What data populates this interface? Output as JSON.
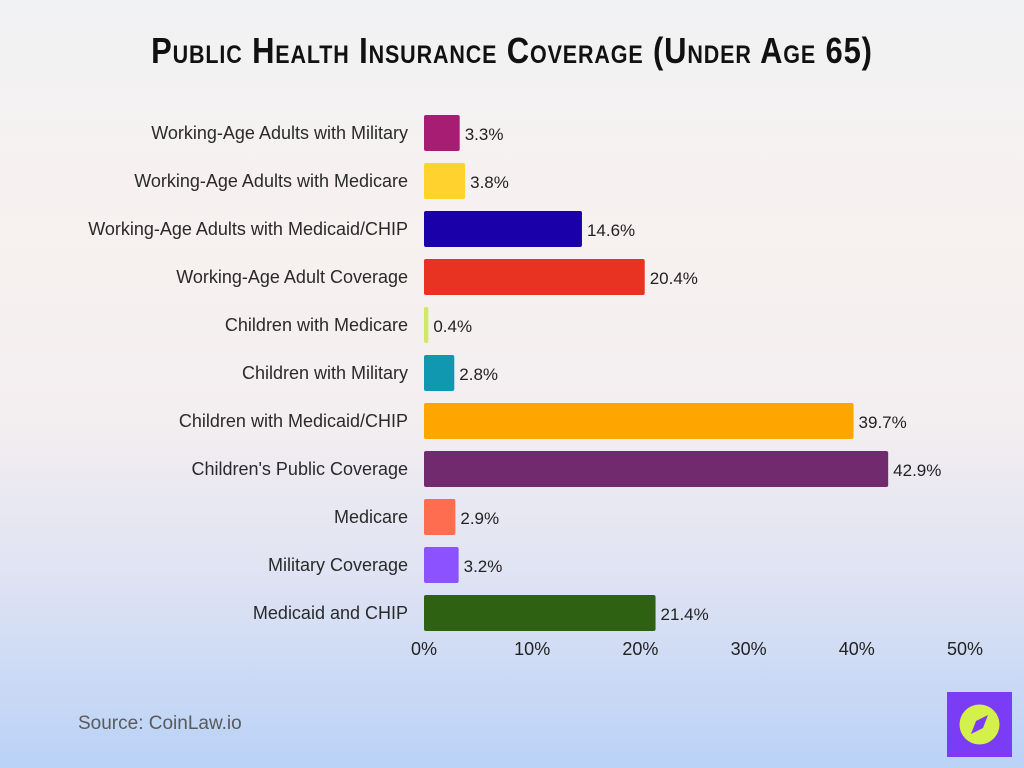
{
  "chart_data": {
    "type": "bar",
    "orientation": "horizontal",
    "title": "Public Health Insurance Coverage (Under Age 65)",
    "categories": [
      "Working-Age Adults with Military",
      "Working-Age Adults with Medicare",
      "Working-Age Adults with Medicaid/CHIP",
      "Working-Age Adult Coverage",
      "Children with Medicare",
      "Children with Military",
      "Children with Medicaid/CHIP",
      "Children's Public Coverage",
      "Medicare",
      "Military Coverage",
      "Medicaid and CHIP"
    ],
    "values": [
      3.3,
      3.8,
      14.6,
      20.4,
      0.4,
      2.8,
      39.7,
      42.9,
      2.9,
      3.2,
      21.4
    ],
    "value_labels": [
      "3.3%",
      "3.8%",
      "14.6%",
      "20.4%",
      "0.4%",
      "2.8%",
      "39.7%",
      "42.9%",
      "2.9%",
      "3.2%",
      "21.4%"
    ],
    "colors": [
      "#a71d74",
      "#ffd22e",
      "#1a00a8",
      "#e83222",
      "#cfe86a",
      "#0f98b0",
      "#ffa500",
      "#722a6e",
      "#ff6d50",
      "#8c52ff",
      "#2e6111"
    ],
    "xlim": [
      0,
      50
    ],
    "x_ticks": [
      0,
      10,
      20,
      30,
      40,
      50
    ],
    "x_tick_labels": [
      "0%",
      "10%",
      "20%",
      "30%",
      "40%",
      "50%"
    ],
    "xlabel": "",
    "ylabel": "",
    "grid": false,
    "legend": "none"
  },
  "source": "Source: CoinLaw.io",
  "logo": {
    "icon": "compass-icon",
    "background": "#7a3cf5",
    "circle": "#d4f04a"
  }
}
